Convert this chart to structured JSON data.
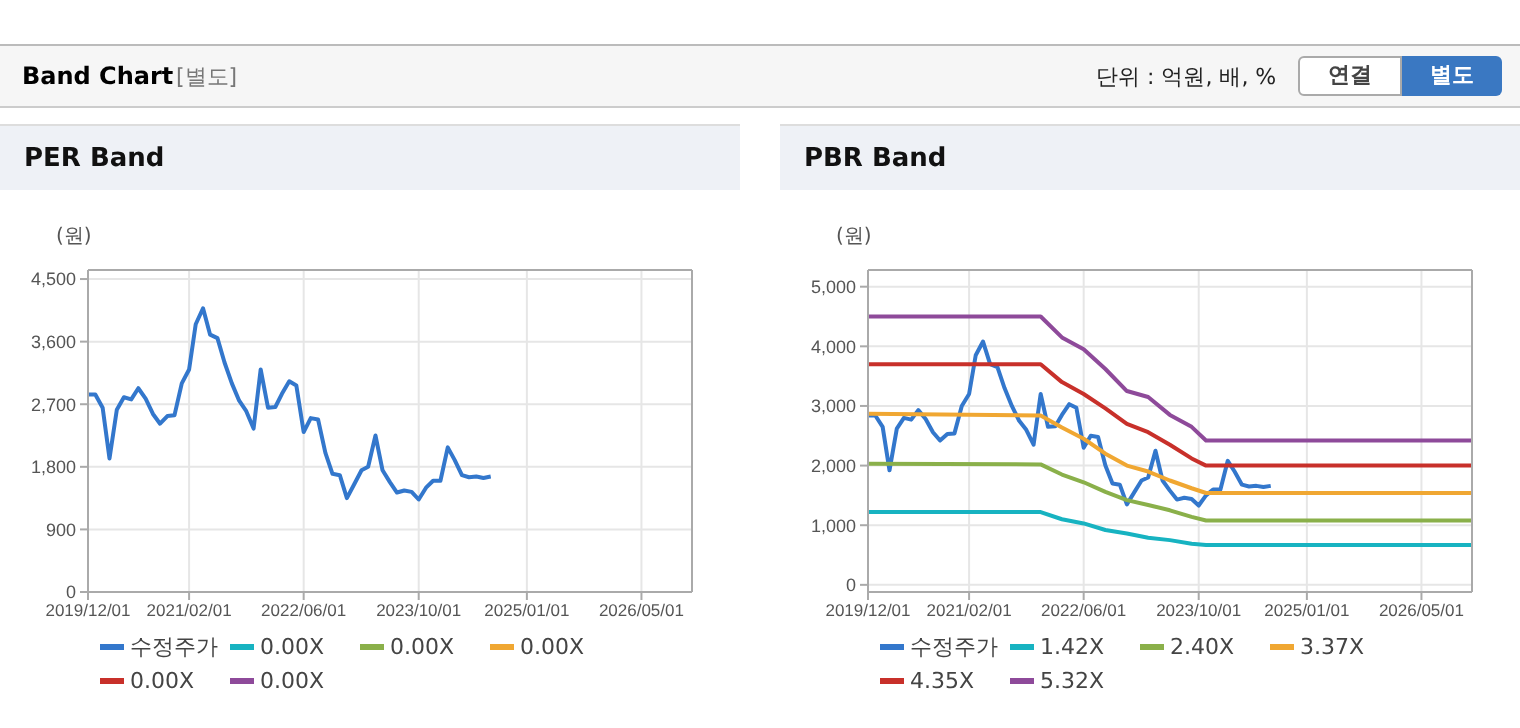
{
  "chart_data": [
    {
      "type": "line",
      "title": "PER Band",
      "ylabel": "(원)",
      "annotations": [
        "Band Chart",
        "[별도]",
        "단위 : 억원, 배, %",
        "연결",
        "별도"
      ],
      "xlim": [
        "2019-12-01",
        "2026-12-01"
      ],
      "xticks": [
        {
          "value": "2019-12-01",
          "label": "2019/12/01"
        },
        {
          "value": "2021-02-01",
          "label": "2021/02/01"
        },
        {
          "value": "2022-06-01",
          "label": "2022/06/01"
        },
        {
          "value": "2023-10-01",
          "label": "2023/10/01"
        },
        {
          "value": "2025-01-01",
          "label": "2025/01/01"
        },
        {
          "value": "2026-05-01",
          "label": "2026/05/01"
        }
      ],
      "ylim": [
        0,
        4630
      ],
      "yticks": [
        {
          "value": 0,
          "label": "0"
        },
        {
          "value": 900,
          "label": "900"
        },
        {
          "value": 1800,
          "label": "1,800"
        },
        {
          "value": 2700,
          "label": "2,700"
        },
        {
          "value": 3600,
          "label": "3,600"
        },
        {
          "value": 4500,
          "label": "4,500"
        }
      ],
      "grid": true,
      "legend": "bottom",
      "marker": "none",
      "series": [
        {
          "name": "수정주가",
          "color": "#3377cc",
          "x": [
            "2019-12",
            "2020-01",
            "2020-02",
            "2020-03",
            "2020-04",
            "2020-05",
            "2020-06",
            "2020-07",
            "2020-08",
            "2020-09",
            "2020-10",
            "2020-11",
            "2020-12",
            "2021-01",
            "2021-02",
            "2021-03",
            "2021-04",
            "2021-05",
            "2021-06",
            "2021-07",
            "2021-08",
            "2021-09",
            "2021-10",
            "2021-11",
            "2021-12",
            "2022-01",
            "2022-02",
            "2022-03",
            "2022-04",
            "2022-05",
            "2022-06",
            "2022-07",
            "2022-08",
            "2022-09",
            "2022-10",
            "2022-11",
            "2022-12",
            "2023-01",
            "2023-02",
            "2023-03",
            "2023-04",
            "2023-05",
            "2023-06",
            "2023-07",
            "2023-08",
            "2023-09",
            "2023-10",
            "2023-11",
            "2023-12",
            "2024-01",
            "2024-02",
            "2024-03",
            "2024-04",
            "2024-05",
            "2024-06",
            "2024-07",
            "2024-08"
          ],
          "values": [
            2840,
            2840,
            2650,
            1920,
            2620,
            2800,
            2770,
            2930,
            2780,
            2560,
            2420,
            2530,
            2540,
            3000,
            3200,
            3850,
            4080,
            3700,
            3650,
            3300,
            3000,
            2750,
            2600,
            2350,
            3200,
            2650,
            2660,
            2850,
            3030,
            2970,
            2300,
            2500,
            2480,
            2000,
            1700,
            1680,
            1350,
            1550,
            1750,
            1800,
            2250,
            1750,
            1580,
            1430,
            1460,
            1440,
            1330,
            1500,
            1600,
            1600,
            2080,
            1900,
            1680,
            1650,
            1660,
            1640,
            1660
          ]
        },
        {
          "name": "0.00X",
          "color": "#17b3c1",
          "values": [
            null
          ]
        },
        {
          "name": "0.00X",
          "color": "#8ab04a",
          "values": [
            null
          ]
        },
        {
          "name": "0.00X",
          "color": "#f0a732",
          "values": [
            null
          ]
        },
        {
          "name": "0.00X",
          "color": "#c8302a",
          "values": [
            null
          ]
        },
        {
          "name": "0.00X",
          "color": "#8e4a9a",
          "values": [
            null
          ]
        }
      ]
    },
    {
      "type": "line",
      "title": "PBR Band",
      "ylabel": "(원)",
      "xlim": [
        "2019-12-01",
        "2026-12-01"
      ],
      "xticks": [
        {
          "value": "2019-12-01",
          "label": "2019/12/01"
        },
        {
          "value": "2021-02-01",
          "label": "2021/02/01"
        },
        {
          "value": "2022-06-01",
          "label": "2022/06/01"
        },
        {
          "value": "2023-10-01",
          "label": "2023/10/01"
        },
        {
          "value": "2025-01-01",
          "label": "2025/01/01"
        },
        {
          "value": "2026-05-01",
          "label": "2026/05/01"
        }
      ],
      "ylim": [
        -120,
        5280
      ],
      "yticks": [
        {
          "value": 0,
          "label": "0"
        },
        {
          "value": 1000,
          "label": "1,000"
        },
        {
          "value": 2000,
          "label": "2,000"
        },
        {
          "value": 3000,
          "label": "3,000"
        },
        {
          "value": 4000,
          "label": "4,000"
        },
        {
          "value": 5000,
          "label": "5,000"
        }
      ],
      "grid": true,
      "legend": "bottom",
      "marker": "none",
      "series": [
        {
          "name": "수정주가",
          "color": "#3377cc",
          "x": [
            "2019-12",
            "2020-01",
            "2020-02",
            "2020-03",
            "2020-04",
            "2020-05",
            "2020-06",
            "2020-07",
            "2020-08",
            "2020-09",
            "2020-10",
            "2020-11",
            "2020-12",
            "2021-01",
            "2021-02",
            "2021-03",
            "2021-04",
            "2021-05",
            "2021-06",
            "2021-07",
            "2021-08",
            "2021-09",
            "2021-10",
            "2021-11",
            "2021-12",
            "2022-01",
            "2022-02",
            "2022-03",
            "2022-04",
            "2022-05",
            "2022-06",
            "2022-07",
            "2022-08",
            "2022-09",
            "2022-10",
            "2022-11",
            "2022-12",
            "2023-01",
            "2023-02",
            "2023-03",
            "2023-04",
            "2023-05",
            "2023-06",
            "2023-07",
            "2023-08",
            "2023-09",
            "2023-10",
            "2023-11",
            "2023-12",
            "2024-01",
            "2024-02",
            "2024-03",
            "2024-04",
            "2024-05",
            "2024-06",
            "2024-07",
            "2024-08"
          ],
          "values": [
            2840,
            2840,
            2650,
            1920,
            2620,
            2800,
            2770,
            2930,
            2780,
            2560,
            2420,
            2530,
            2540,
            3000,
            3200,
            3850,
            4080,
            3700,
            3650,
            3300,
            3000,
            2750,
            2600,
            2350,
            3200,
            2650,
            2660,
            2850,
            3030,
            2970,
            2300,
            2500,
            2480,
            2000,
            1700,
            1680,
            1350,
            1550,
            1750,
            1800,
            2250,
            1750,
            1580,
            1430,
            1460,
            1440,
            1330,
            1500,
            1600,
            1600,
            2080,
            1900,
            1680,
            1650,
            1660,
            1640,
            1660
          ]
        },
        {
          "name": "1.42X",
          "color": "#17b3c1",
          "x": [
            "2019-12",
            "2021-12",
            "2022-03",
            "2022-06",
            "2022-09",
            "2022-12",
            "2023-03",
            "2023-06",
            "2023-09",
            "2023-11",
            "2026-12"
          ],
          "values": [
            1220,
            1220,
            1100,
            1030,
            920,
            860,
            790,
            750,
            690,
            670,
            670
          ]
        },
        {
          "name": "2.40X",
          "color": "#8ab04a",
          "x": [
            "2019-12",
            "2021-12",
            "2022-03",
            "2022-06",
            "2022-09",
            "2022-12",
            "2023-03",
            "2023-06",
            "2023-09",
            "2023-11",
            "2026-12"
          ],
          "values": [
            2030,
            2020,
            1850,
            1720,
            1560,
            1420,
            1340,
            1250,
            1140,
            1080,
            1080
          ]
        },
        {
          "name": "3.37X",
          "color": "#f0a732",
          "x": [
            "2019-12",
            "2021-12",
            "2022-03",
            "2022-06",
            "2022-09",
            "2022-12",
            "2023-03",
            "2023-06",
            "2023-09",
            "2023-11",
            "2026-12"
          ],
          "values": [
            2870,
            2840,
            2640,
            2450,
            2200,
            2000,
            1900,
            1750,
            1620,
            1540,
            1540
          ]
        },
        {
          "name": "4.35X",
          "color": "#c8302a",
          "x": [
            "2019-12",
            "2021-12",
            "2022-03",
            "2022-06",
            "2022-09",
            "2022-12",
            "2023-03",
            "2023-06",
            "2023-09",
            "2023-11",
            "2026-12"
          ],
          "values": [
            3700,
            3700,
            3400,
            3200,
            2960,
            2700,
            2560,
            2350,
            2120,
            2000,
            2000
          ]
        },
        {
          "name": "5.32X",
          "color": "#8e4a9a",
          "x": [
            "2019-12",
            "2021-12",
            "2022-03",
            "2022-06",
            "2022-09",
            "2022-12",
            "2023-03",
            "2023-06",
            "2023-09",
            "2023-11",
            "2026-12"
          ],
          "values": [
            4500,
            4500,
            4150,
            3950,
            3620,
            3250,
            3150,
            2850,
            2650,
            2420,
            2420
          ]
        }
      ]
    }
  ]
}
